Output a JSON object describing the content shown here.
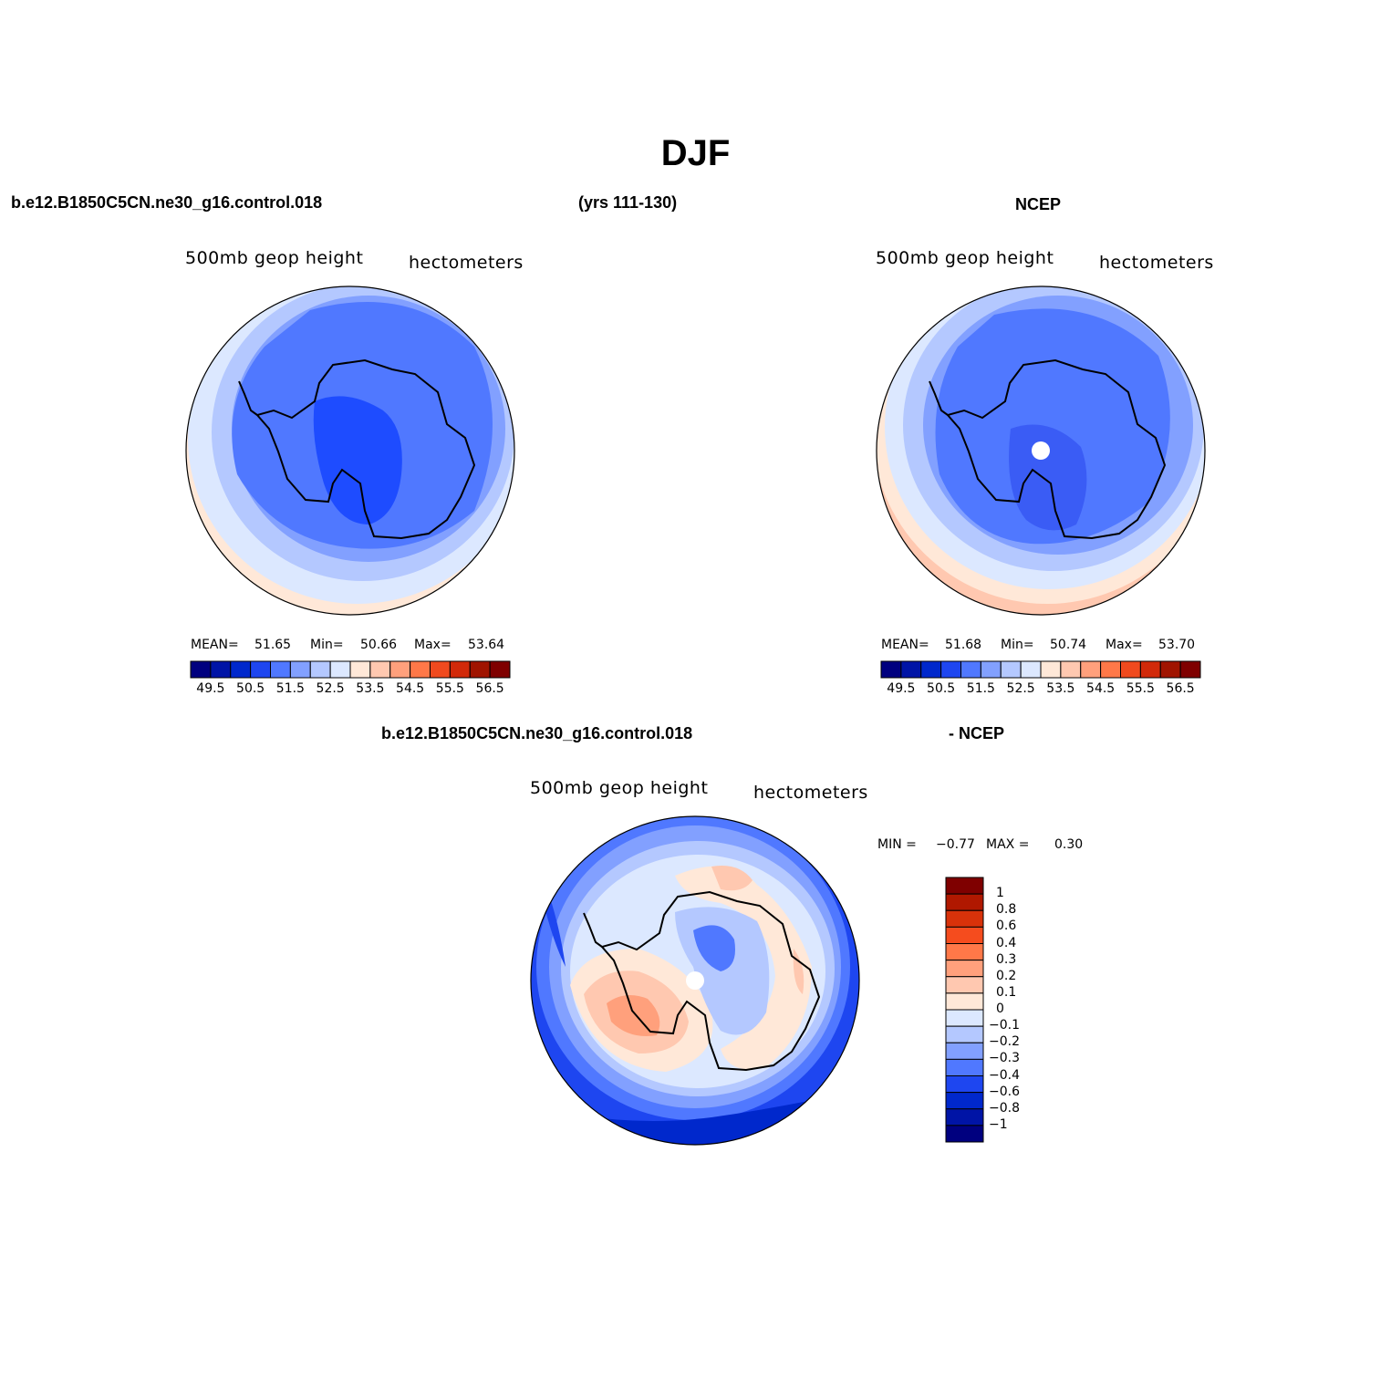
{
  "title": "DJF",
  "header": {
    "case_name": "b.e12.B1850C5CN.ne30_g16.control.018",
    "years": "(yrs 111-130)",
    "obs_name": "NCEP",
    "diff_case": "b.e12.B1850C5CN.ne30_g16.control.018",
    "diff_obs": "- NCEP"
  },
  "panels": [
    {
      "variable": "500mb  geop  height",
      "units": "hectometers",
      "mean_label": "MEAN=",
      "mean": "51.65",
      "min_label": "Min=",
      "min": "50.66",
      "max_label": "Max=",
      "max": "53.64"
    },
    {
      "variable": "500mb  geop  height",
      "units": "hectometers",
      "mean_label": "MEAN=",
      "mean": "51.68",
      "min_label": "Min=",
      "min": "50.74",
      "max_label": "Max=",
      "max": "53.70"
    },
    {
      "variable": "500mb  geop  height",
      "units": "hectometers",
      "min_label": "MIN =",
      "min": "−0.77",
      "max_label": "MAX =",
      "max": "0.30"
    }
  ],
  "colorbar_abs": {
    "tick_labels": [
      "49.5",
      "50.5",
      "51.5",
      "52.5",
      "53.5",
      "54.5",
      "55.5",
      "56.5"
    ],
    "colors": [
      "#00007f",
      "#0014a6",
      "#0028cc",
      "#1e46f0",
      "#5078ff",
      "#82a0ff",
      "#b4c8ff",
      "#dce8ff",
      "#ffe8d8",
      "#ffc8b0",
      "#ffa07c",
      "#ff7848",
      "#f04a1e",
      "#d22a0a",
      "#a01400",
      "#7f0000"
    ]
  },
  "colorbar_diff": {
    "tick_labels": [
      "1",
      "0.8",
      "0.6",
      "0.4",
      "0.3",
      "0.2",
      "0.1",
      "0",
      "−0.1",
      "−0.2",
      "−0.3",
      "−0.4",
      "−0.6",
      "−0.8",
      "−1"
    ],
    "colors": [
      "#7f0000",
      "#b01800",
      "#d8320a",
      "#f54c1e",
      "#ff7848",
      "#ffa07c",
      "#ffc8b0",
      "#ffe8d8",
      "#dce8ff",
      "#b4c8ff",
      "#82a0ff",
      "#5078ff",
      "#1e46f0",
      "#0028cc",
      "#0014a6",
      "#00007f"
    ]
  }
}
